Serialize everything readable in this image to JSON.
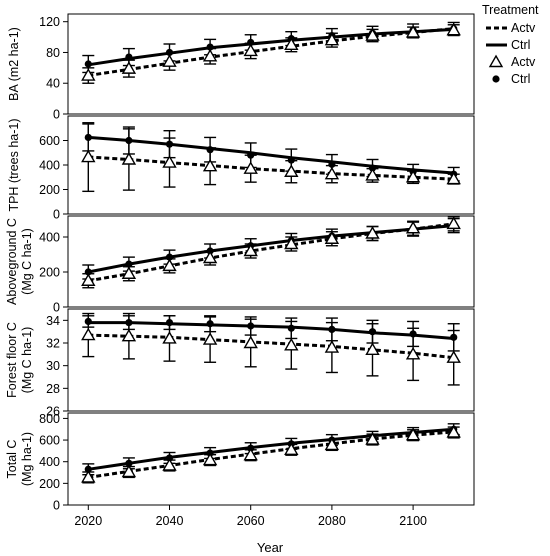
{
  "chart_data": {
    "type": "line",
    "x_title": "Year",
    "x_ticks": [
      2020,
      2040,
      2060,
      2080,
      2100
    ],
    "xlim": [
      2015,
      2115
    ],
    "x": [
      2020,
      2030,
      2040,
      2050,
      2060,
      2070,
      2080,
      2090,
      2100,
      2110
    ],
    "legend": {
      "title": "Treatment",
      "position": "top-right",
      "lines": [
        {
          "label": "Actv",
          "style": "dashed"
        },
        {
          "label": "Ctrl",
          "style": "solid"
        }
      ],
      "markers": [
        {
          "label": "Actv",
          "marker": "open-triangle"
        },
        {
          "label": "Ctrl",
          "marker": "filled-circle"
        }
      ]
    },
    "panels": [
      {
        "ylabel": [
          "BA (m2 ha-1)"
        ],
        "ylim": [
          0,
          130
        ],
        "yticks": [
          0,
          40,
          80,
          120
        ],
        "yticklabels": [
          "0",
          "40",
          "80",
          "120"
        ],
        "series": [
          {
            "name": "Ctrl",
            "line_values": [
              64,
              72,
              79,
              86,
              91,
              96,
              100,
              104,
              107,
              110
            ],
            "points": [
              65,
              74,
              80,
              87,
              93,
              98,
              102,
              105,
              109,
              111
            ],
            "err": [
              11,
              11,
              11,
              10,
              10,
              9,
              9,
              9,
              8,
              8
            ]
          },
          {
            "name": "Actv",
            "line_values": [
              50,
              58,
              66,
              74,
              81,
              88,
              95,
              101,
              106,
              111
            ],
            "points": [
              50,
              59,
              68,
              75,
              82,
              90,
              96,
              102,
              106,
              109
            ],
            "err": [
              10,
              11,
              11,
              10,
              10,
              9,
              9,
              8,
              7,
              7
            ]
          }
        ]
      },
      {
        "ylabel": [
          "TPH (trees ha-1)"
        ],
        "ylim": [
          0,
          800
        ],
        "yticks": [
          0,
          200,
          400,
          600
        ],
        "yticklabels": [
          "0",
          "200",
          "400",
          "600"
        ],
        "series": [
          {
            "name": "Ctrl",
            "line_values": [
              625,
              600,
              570,
              535,
              500,
              460,
              425,
              390,
              360,
              335
            ],
            "points": [
              625,
              600,
              570,
              525,
              480,
              440,
              405,
              375,
              345,
              325
            ],
            "err": [
              110,
              110,
              110,
              100,
              100,
              90,
              80,
              70,
              60,
              55
            ]
          },
          {
            "name": "Actv",
            "line_values": [
              465,
              445,
              420,
              395,
              370,
              350,
              330,
              315,
              300,
              285
            ],
            "points": [
              465,
              445,
              420,
              390,
              370,
              345,
              325,
              315,
              300,
              285
            ],
            "err": [
              280,
              250,
              200,
              150,
              110,
              90,
              70,
              55,
              50,
              40
            ]
          }
        ]
      },
      {
        "ylabel": [
          "Aboveground C",
          "(Mg C ha-1)"
        ],
        "ylim": [
          0,
          520
        ],
        "yticks": [
          0,
          200,
          400
        ],
        "yticklabels": [
          "0",
          "200",
          "400"
        ],
        "series": [
          {
            "name": "Ctrl",
            "line_values": [
              200,
              245,
              285,
              320,
              350,
              380,
              405,
              425,
              445,
              465
            ],
            "points": [
              200,
              245,
              285,
              320,
              350,
              380,
              405,
              420,
              445,
              465
            ],
            "err": [
              40,
              40,
              40,
              40,
              40,
              40,
              40,
              40,
              40,
              40
            ]
          },
          {
            "name": "Actv",
            "line_values": [
              150,
              190,
              235,
              280,
              320,
              355,
              390,
              420,
              445,
              475
            ],
            "points": [
              150,
              190,
              235,
              280,
              320,
              360,
              390,
              420,
              450,
              475
            ],
            "err": [
              40,
              40,
              40,
              40,
              40,
              40,
              40,
              40,
              40,
              40
            ]
          }
        ]
      },
      {
        "ylabel": [
          "Forest floor C",
          "(Mg C ha-1)"
        ],
        "ylim": [
          26,
          35
        ],
        "yticks": [
          26,
          28,
          30,
          32,
          34
        ],
        "yticklabels": [
          "26",
          "28",
          "30",
          "32",
          "34"
        ],
        "series": [
          {
            "name": "Ctrl",
            "line_values": [
              33.8,
              33.8,
              33.7,
              33.6,
              33.5,
              33.4,
              33.2,
              32.9,
              32.7,
              32.4
            ],
            "points": [
              33.9,
              33.8,
              33.8,
              33.7,
              33.5,
              33.3,
              33.2,
              33.0,
              32.8,
              32.5
            ],
            "err": [
              0.5,
              0.6,
              0.6,
              0.7,
              0.8,
              0.9,
              1.0,
              1.0,
              1.1,
              1.2
            ]
          },
          {
            "name": "Actv",
            "line_values": [
              32.7,
              32.6,
              32.5,
              32.3,
              32.1,
              31.9,
              31.7,
              31.4,
              31.1,
              30.7
            ],
            "points": [
              32.7,
              32.6,
              32.4,
              32.3,
              32.0,
              31.8,
              31.6,
              31.4,
              31.0,
              30.7
            ],
            "err": [
              1.9,
              2.0,
              2.0,
              2.0,
              2.1,
              2.1,
              2.2,
              2.3,
              2.3,
              2.4
            ]
          }
        ]
      },
      {
        "ylabel": [
          "Total C",
          "(Mg ha-1)"
        ],
        "ylim": [
          0,
          850
        ],
        "yticks": [
          0,
          200,
          400,
          600,
          800
        ],
        "yticklabels": [
          "0",
          "200",
          "400",
          "600",
          "800"
        ],
        "series": [
          {
            "name": "Ctrl",
            "line_values": [
              330,
              385,
              440,
              485,
              530,
              570,
              605,
              640,
              670,
              700
            ],
            "points": [
              330,
              385,
              435,
              480,
              525,
              565,
              600,
              630,
              665,
              700
            ],
            "err": [
              50,
              50,
              50,
              50,
              50,
              50,
              50,
              50,
              50,
              50
            ]
          },
          {
            "name": "Actv",
            "line_values": [
              255,
              310,
              365,
              420,
              470,
              520,
              565,
              610,
              645,
              675
            ],
            "points": [
              255,
              305,
              365,
              415,
              460,
              510,
              555,
              605,
              645,
              670
            ],
            "err": [
              50,
              50,
              50,
              50,
              50,
              50,
              50,
              50,
              50,
              50
            ]
          }
        ]
      }
    ]
  }
}
